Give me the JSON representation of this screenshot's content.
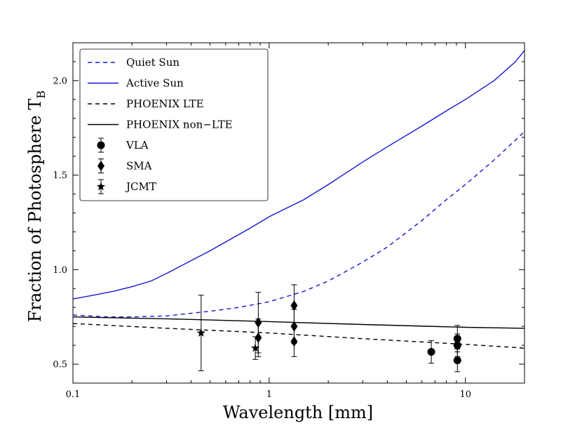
{
  "chart_data": {
    "type": "line",
    "xscale": "log",
    "xlabel": "Wavelength  [mm]",
    "ylabel": "Fraction  of  Photosphere  T",
    "ylabel_subscript": "B",
    "xlim": [
      0.1,
      20
    ],
    "ylim": [
      0.4,
      2.2
    ],
    "x_ticks": [
      0.1,
      1,
      10
    ],
    "x_tick_labels": [
      "0.1",
      "1",
      "10"
    ],
    "y_ticks": [
      0.5,
      1.0,
      1.5,
      2.0
    ],
    "y_tick_labels": [
      "0.5",
      "1.0",
      "1.5",
      "2.0"
    ],
    "legend_position": "top-left",
    "series": [
      {
        "name": "Quiet Sun",
        "color": "#1515d6",
        "dash": "dashed",
        "x": [
          0.1,
          0.15,
          0.2,
          0.3,
          0.5,
          0.7,
          1.0,
          1.5,
          2.0,
          3.0,
          4.0,
          6.0,
          8.0,
          10.0,
          14.0,
          20.0
        ],
        "y": [
          0.76,
          0.75,
          0.75,
          0.755,
          0.78,
          0.8,
          0.83,
          0.885,
          0.94,
          1.04,
          1.12,
          1.26,
          1.37,
          1.45,
          1.58,
          1.73
        ]
      },
      {
        "name": "Active Sun",
        "color": "#1515d6",
        "dash": "solid",
        "x": [
          0.1,
          0.12,
          0.16,
          0.2,
          0.25,
          0.3,
          0.5,
          0.8,
          1.0,
          1.5,
          2.0,
          3.0,
          4.0,
          6.0,
          8.0,
          10.0,
          14.0,
          18.0,
          20.0
        ],
        "y": [
          0.845,
          0.86,
          0.885,
          0.91,
          0.94,
          0.98,
          1.1,
          1.22,
          1.28,
          1.37,
          1.45,
          1.57,
          1.65,
          1.76,
          1.84,
          1.9,
          2.0,
          2.1,
          2.16
        ]
      },
      {
        "name": "PHOENIX LTE",
        "color": "#000000",
        "dash": "dashed",
        "x": [
          0.1,
          0.3,
          1.0,
          3.0,
          10.0,
          20.0
        ],
        "y": [
          0.715,
          0.69,
          0.665,
          0.635,
          0.605,
          0.585
        ]
      },
      {
        "name": "PHOENIX non−LTE",
        "color": "#000000",
        "dash": "solid",
        "x": [
          0.1,
          0.3,
          1.0,
          3.0,
          10.0,
          20.0
        ],
        "y": [
          0.75,
          0.74,
          0.725,
          0.71,
          0.695,
          0.69
        ]
      }
    ],
    "points": [
      {
        "name": "VLA",
        "marker": "circle",
        "data": [
          {
            "x": 6.7,
            "y": 0.565,
            "err": 0.06
          },
          {
            "x": 9.1,
            "y": 0.635,
            "err": 0.07
          },
          {
            "x": 9.1,
            "y": 0.6,
            "err": 0.06
          },
          {
            "x": 9.1,
            "y": 0.52,
            "err": 0.06
          }
        ]
      },
      {
        "name": "SMA",
        "marker": "diamond",
        "data": [
          {
            "x": 0.88,
            "y": 0.72,
            "err": 0.16
          },
          {
            "x": 0.88,
            "y": 0.64,
            "err": 0.1
          },
          {
            "x": 1.34,
            "y": 0.81,
            "err": 0.11
          },
          {
            "x": 1.34,
            "y": 0.7,
            "err": 0.09
          },
          {
            "x": 1.34,
            "y": 0.62,
            "err": 0.08
          }
        ]
      },
      {
        "name": "JCMT",
        "marker": "star",
        "data": [
          {
            "x": 0.45,
            "y": 0.665,
            "err": 0.2
          },
          {
            "x": 0.85,
            "y": 0.585,
            "err": 0.06
          }
        ]
      }
    ]
  }
}
